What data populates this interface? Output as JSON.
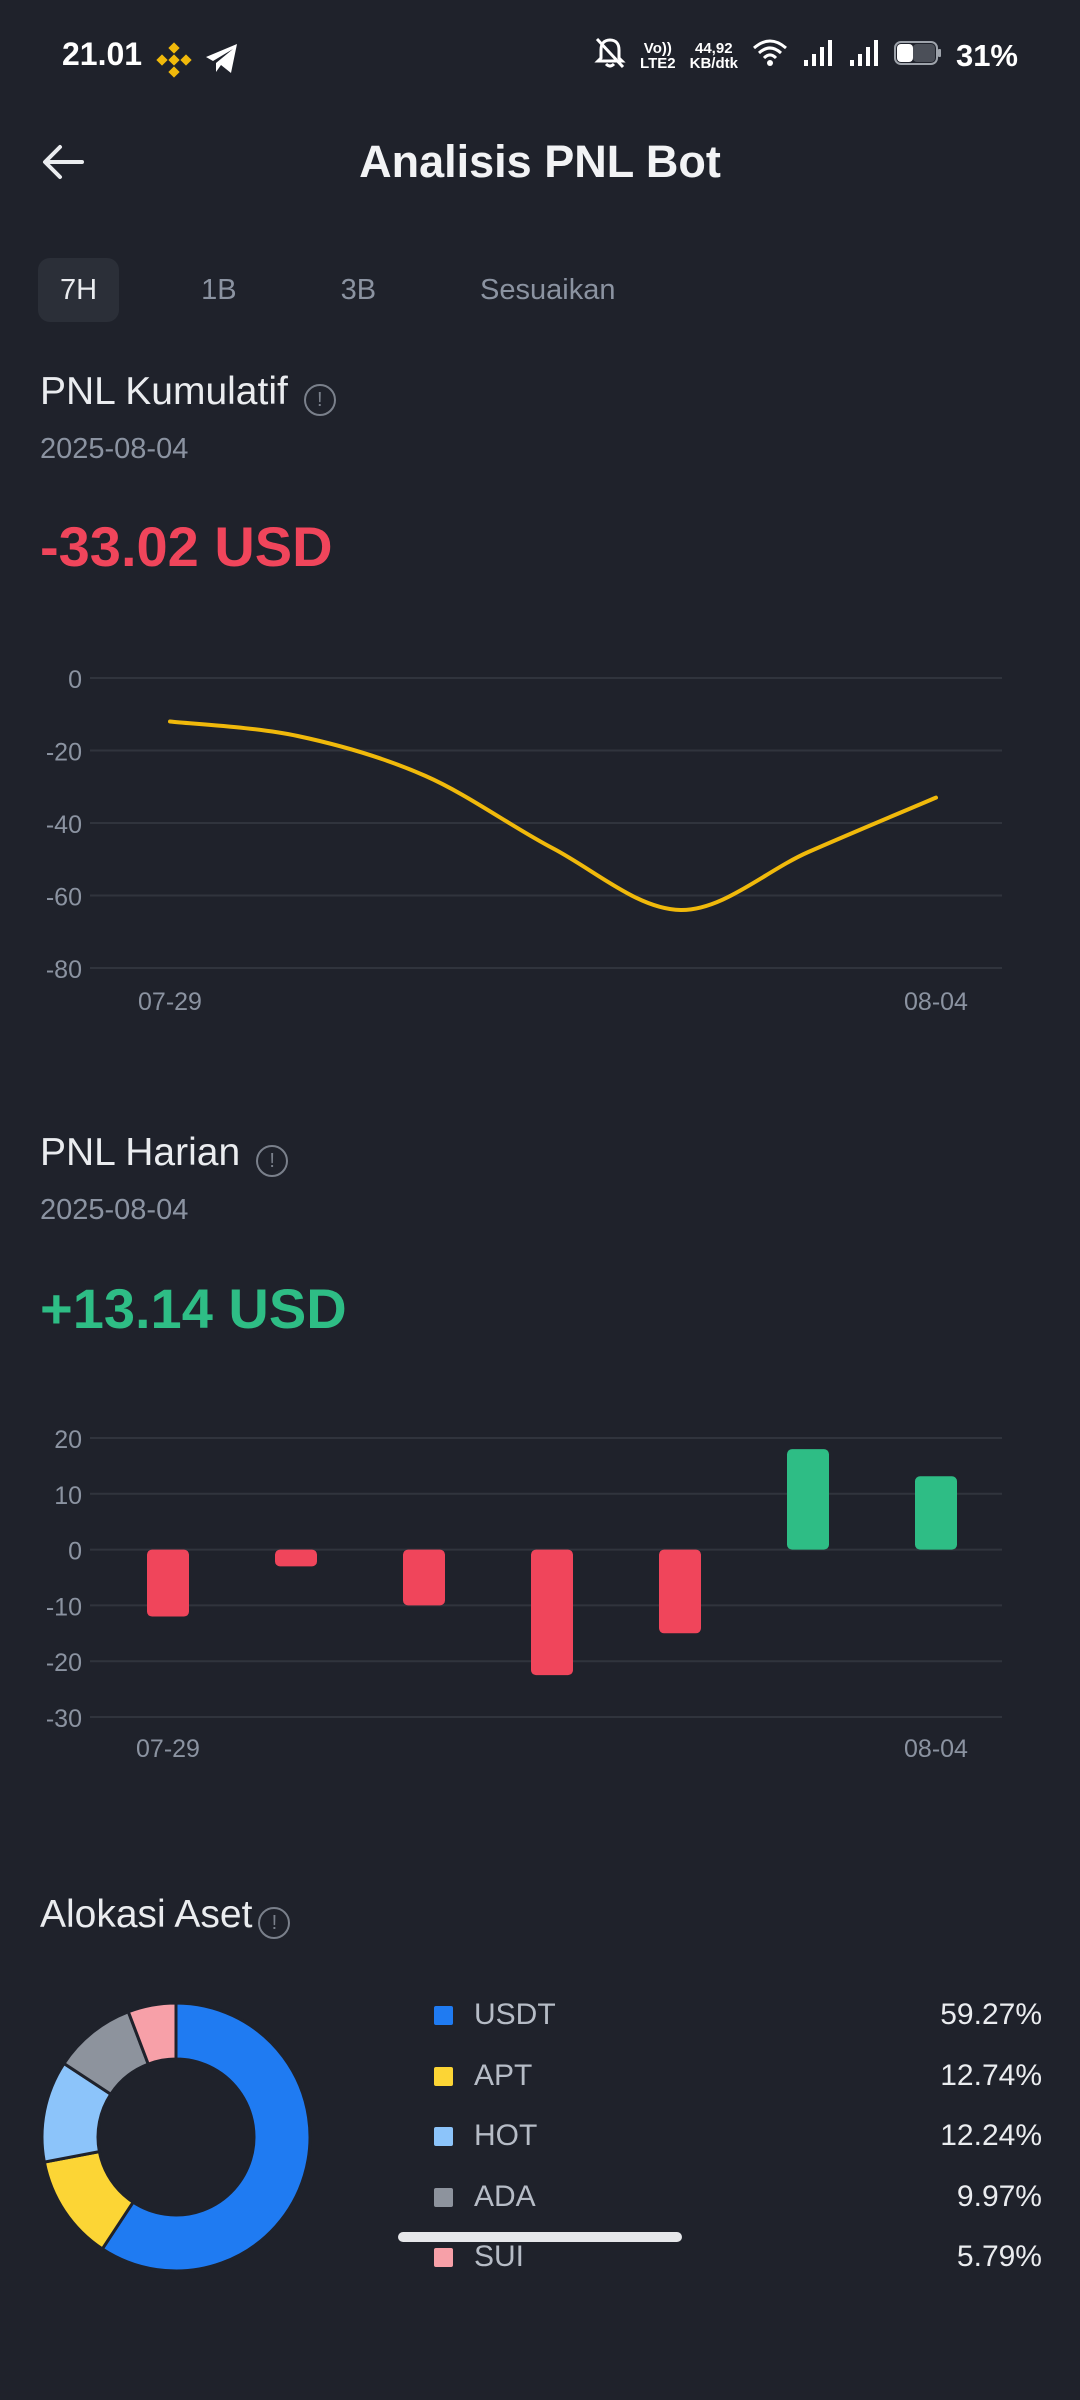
{
  "status_bar": {
    "time": "21.01",
    "volte": "Vo))",
    "lte": "LTE2",
    "net_speed_value": "44,92",
    "net_speed_unit": "KB/dtk",
    "battery": "31%",
    "icons": [
      "binance-icon",
      "telegram-icon",
      "mute-bell-icon",
      "wifi-icon",
      "signal-icon",
      "signal-icon",
      "battery-icon"
    ]
  },
  "header": {
    "title": "Analisis PNL Bot",
    "back_icon": "arrow-left-icon"
  },
  "tabs": [
    {
      "label": "7H",
      "active": true
    },
    {
      "label": "1B",
      "active": false
    },
    {
      "label": "3B",
      "active": false
    },
    {
      "label": "Sesuaikan",
      "active": false
    }
  ],
  "cumulative": {
    "title": "PNL Kumulatif",
    "info_glyph": "!",
    "date": "2025-08-04",
    "value": "-33.02 USD"
  },
  "daily": {
    "title": "PNL Harian",
    "info_glyph": "!",
    "date": "2025-08-04",
    "value": "+13.14 USD"
  },
  "allocation": {
    "title": "Alokasi Aset",
    "info_glyph": "!"
  },
  "chart_data": [
    {
      "type": "line",
      "x_tick_labels": [
        "07-29",
        "08-04"
      ],
      "x": [
        0,
        1,
        2,
        3,
        4,
        5,
        6
      ],
      "values": [
        -12,
        -16,
        -27,
        -47,
        -64,
        -48,
        -33
      ],
      "ylim": [
        -80,
        0
      ],
      "yticks": [
        0,
        -20,
        -40,
        -60,
        -80
      ],
      "grid": true,
      "color": "#f0b90b"
    },
    {
      "type": "bar",
      "x_tick_labels": [
        "07-29",
        "08-04"
      ],
      "values": [
        -12,
        -3,
        -10,
        -22.5,
        -15,
        18,
        13.14
      ],
      "ylim": [
        -30,
        20
      ],
      "yticks": [
        20,
        10,
        0,
        -10,
        -20,
        -30
      ],
      "grid": true,
      "pos_color": "#2ebd85",
      "neg_color": "#f0455b"
    },
    {
      "type": "pie",
      "donut": true,
      "slices": [
        {
          "name": "USDT",
          "value": 59.27,
          "label": "59.27%",
          "color": "#1f7bf2"
        },
        {
          "name": "APT",
          "value": 12.74,
          "label": "12.74%",
          "color": "#fcd535"
        },
        {
          "name": "HOT",
          "value": 12.24,
          "label": "12.24%",
          "color": "#8cc4fa"
        },
        {
          "name": "ADA",
          "value": 9.97,
          "label": "9.97%",
          "color": "#8d939d"
        },
        {
          "name": "SUI",
          "value": 5.79,
          "label": "5.79%",
          "color": "#f7a0a8"
        }
      ]
    }
  ]
}
